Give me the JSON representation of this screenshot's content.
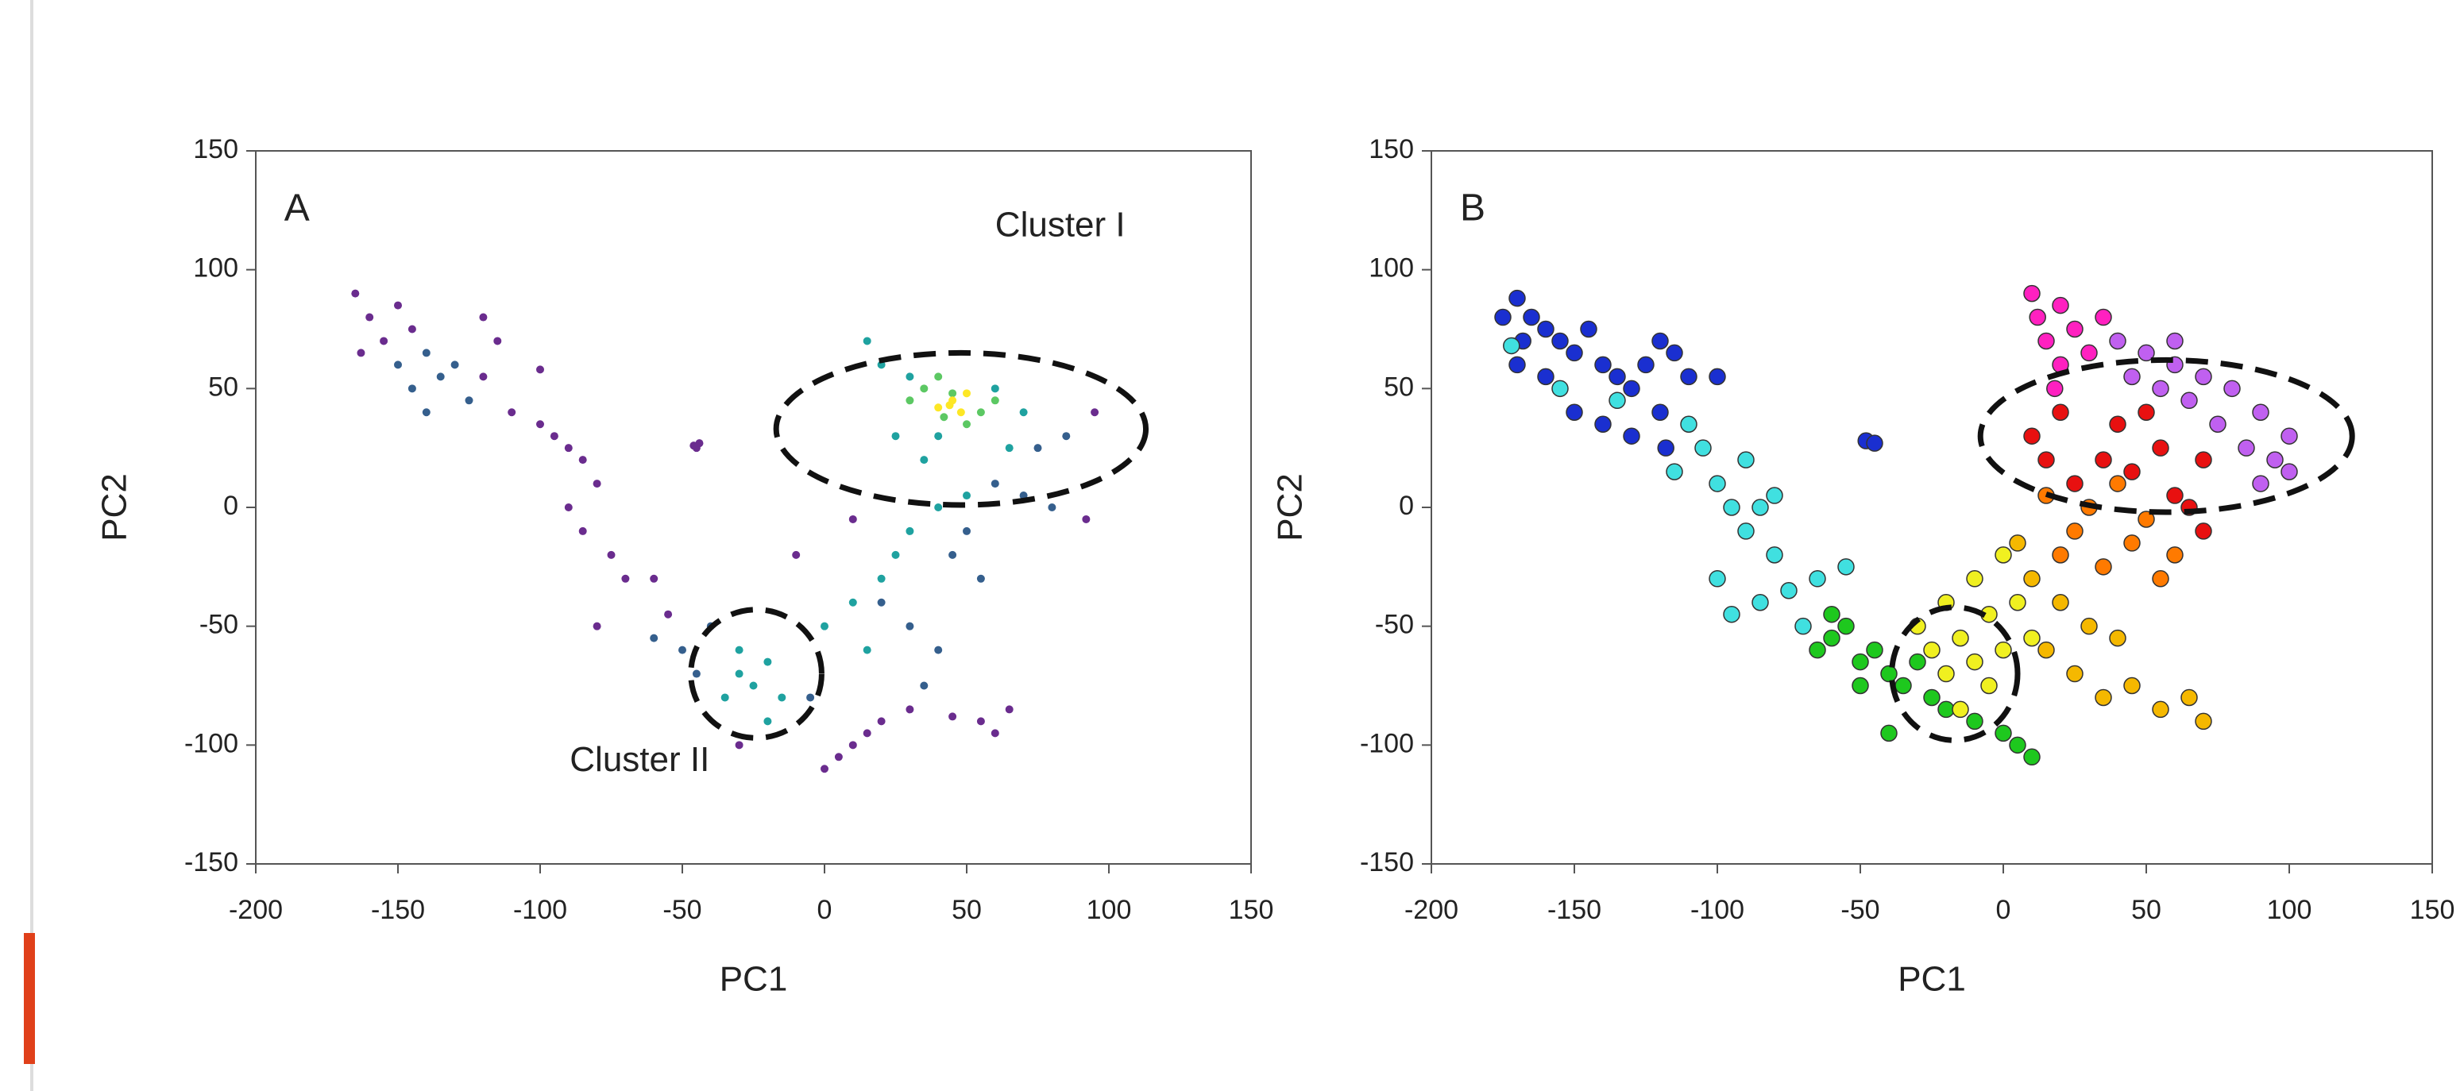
{
  "chart_data": [
    {
      "type": "scatter",
      "annotations": [
        "A",
        "Cluster I",
        "Cluster II"
      ],
      "xlabel": "PC1",
      "ylabel": "PC2",
      "xlim": [
        -200,
        150
      ],
      "ylim": [
        -150,
        150
      ],
      "xticks": [
        -200,
        -150,
        -100,
        -50,
        0,
        50,
        100,
        150
      ],
      "yticks": [
        -150,
        -100,
        -50,
        0,
        50,
        100,
        150
      ],
      "series": [
        {
          "color": "#6a2c8e",
          "x": [
            -165,
            -160,
            -163,
            -155,
            -150,
            -145,
            -120,
            -115,
            -100,
            -120,
            -110,
            -100,
            -95,
            -90,
            -85,
            -80,
            -90,
            -85,
            -75,
            -70,
            -80,
            -60,
            -55,
            -45,
            -44,
            -46,
            10,
            0,
            5,
            15,
            20,
            30,
            45,
            55,
            60,
            65,
            95,
            92,
            -30,
            -10,
            10
          ],
          "y": [
            90,
            80,
            65,
            70,
            85,
            75,
            80,
            70,
            58,
            55,
            40,
            35,
            30,
            25,
            20,
            10,
            0,
            -10,
            -20,
            -30,
            -50,
            -30,
            -45,
            25,
            27,
            26,
            -100,
            -110,
            -105,
            -95,
            -90,
            -85,
            -88,
            -90,
            -95,
            -85,
            40,
            -5,
            -100,
            -20,
            -5
          ]
        },
        {
          "color": "#355f8d",
          "x": [
            -150,
            -140,
            -135,
            -130,
            -145,
            -125,
            -140,
            -60,
            -50,
            -40,
            -45,
            20,
            30,
            40,
            60,
            70,
            80,
            75,
            85,
            50,
            45,
            55,
            -5,
            35
          ],
          "y": [
            60,
            65,
            55,
            60,
            50,
            45,
            40,
            -55,
            -60,
            -50,
            -70,
            -40,
            -50,
            -60,
            10,
            5,
            0,
            25,
            30,
            -10,
            -20,
            -30,
            -80,
            -75
          ]
        },
        {
          "color": "#1fa2a0",
          "x": [
            -30,
            -25,
            -20,
            -35,
            -15,
            -30,
            -20,
            0,
            10,
            20,
            25,
            15,
            30,
            40,
            50,
            35,
            25,
            20,
            15,
            30,
            60,
            70,
            65,
            40
          ],
          "y": [
            -70,
            -75,
            -65,
            -80,
            -80,
            -60,
            -90,
            -50,
            -40,
            -30,
            -20,
            -60,
            -10,
            0,
            5,
            20,
            30,
            60,
            70,
            55,
            50,
            40,
            25,
            30
          ]
        },
        {
          "color": "#5cc863",
          "x": [
            30,
            35,
            40,
            55,
            50,
            45,
            60,
            42
          ],
          "y": [
            45,
            50,
            55,
            40,
            35,
            48,
            45,
            38
          ]
        },
        {
          "color": "#fde725",
          "x": [
            45,
            40,
            48,
            50,
            44
          ],
          "y": [
            45,
            42,
            40,
            48,
            43
          ]
        }
      ]
    },
    {
      "type": "scatter",
      "annotations": [
        "B"
      ],
      "xlabel": "PC1",
      "ylabel": "PC2",
      "xlim": [
        -200,
        150
      ],
      "ylim": [
        -150,
        150
      ],
      "xticks": [
        -200,
        -150,
        -100,
        -50,
        0,
        50,
        100,
        150
      ],
      "yticks": [
        -150,
        -100,
        -50,
        0,
        50,
        100,
        150
      ],
      "series": [
        {
          "color": "#1a2fd0",
          "x": [
            -175,
            -170,
            -168,
            -165,
            -160,
            -155,
            -150,
            -145,
            -140,
            -135,
            -130,
            -125,
            -120,
            -115,
            -150,
            -140,
            -130,
            -120,
            -110,
            -100,
            -48,
            -45,
            -170,
            -160,
            -118
          ],
          "y": [
            80,
            88,
            70,
            80,
            75,
            70,
            65,
            75,
            60,
            55,
            50,
            60,
            70,
            65,
            40,
            35,
            30,
            40,
            55,
            55,
            28,
            27,
            60,
            55,
            25
          ]
        },
        {
          "color": "#40e0e0",
          "x": [
            -172,
            -155,
            -135,
            -110,
            -105,
            -115,
            -100,
            -95,
            -90,
            -85,
            -80,
            -100,
            -95,
            -85,
            -75,
            -70,
            -65,
            -55,
            -90,
            -80
          ],
          "y": [
            68,
            50,
            45,
            35,
            25,
            15,
            10,
            0,
            -10,
            0,
            -20,
            -30,
            -45,
            -40,
            -35,
            -50,
            -30,
            -25,
            20,
            5
          ]
        },
        {
          "color": "#1ec81e",
          "x": [
            -65,
            -60,
            -55,
            -50,
            -45,
            -40,
            -35,
            -30,
            -25,
            -20,
            -40,
            -10,
            0,
            5,
            10,
            -60,
            -50
          ],
          "y": [
            -60,
            -55,
            -50,
            -65,
            -60,
            -70,
            -75,
            -65,
            -80,
            -85,
            -95,
            -90,
            -95,
            -100,
            -105,
            -45,
            -75
          ]
        },
        {
          "color": "#f0f020",
          "x": [
            -30,
            -25,
            -20,
            -15,
            -10,
            -5,
            0,
            -20,
            -10,
            0,
            5,
            10,
            -15,
            -5
          ],
          "y": [
            -50,
            -60,
            -70,
            -55,
            -65,
            -75,
            -60,
            -40,
            -30,
            -20,
            -40,
            -55,
            -85,
            -45
          ]
        },
        {
          "color": "#f5b800",
          "x": [
            15,
            25,
            35,
            45,
            55,
            65,
            70,
            20,
            30,
            40,
            10,
            5
          ],
          "y": [
            -60,
            -70,
            -80,
            -75,
            -85,
            -80,
            -90,
            -40,
            -50,
            -55,
            -30,
            -15
          ]
        },
        {
          "color": "#ff7a00",
          "x": [
            20,
            25,
            35,
            45,
            50,
            55,
            30,
            15,
            40,
            60
          ],
          "y": [
            -20,
            -10,
            -25,
            -15,
            -5,
            -30,
            0,
            5,
            10,
            -20
          ]
        },
        {
          "color": "#e81010",
          "x": [
            10,
            15,
            25,
            35,
            45,
            55,
            60,
            65,
            70,
            50,
            40,
            20,
            70
          ],
          "y": [
            30,
            20,
            10,
            20,
            15,
            25,
            5,
            0,
            -10,
            40,
            35,
            40,
            20
          ]
        },
        {
          "color": "#ff20c0",
          "x": [
            10,
            12,
            15,
            20,
            25,
            30,
            20,
            35,
            18
          ],
          "y": [
            90,
            80,
            70,
            60,
            75,
            65,
            85,
            80,
            50
          ]
        },
        {
          "color": "#c060f0",
          "x": [
            40,
            50,
            60,
            70,
            80,
            90,
            100,
            95,
            85,
            75,
            65,
            55,
            45,
            60,
            100,
            90
          ],
          "y": [
            70,
            65,
            60,
            55,
            50,
            40,
            30,
            20,
            25,
            35,
            45,
            50,
            55,
            70,
            15,
            10
          ]
        }
      ]
    }
  ]
}
